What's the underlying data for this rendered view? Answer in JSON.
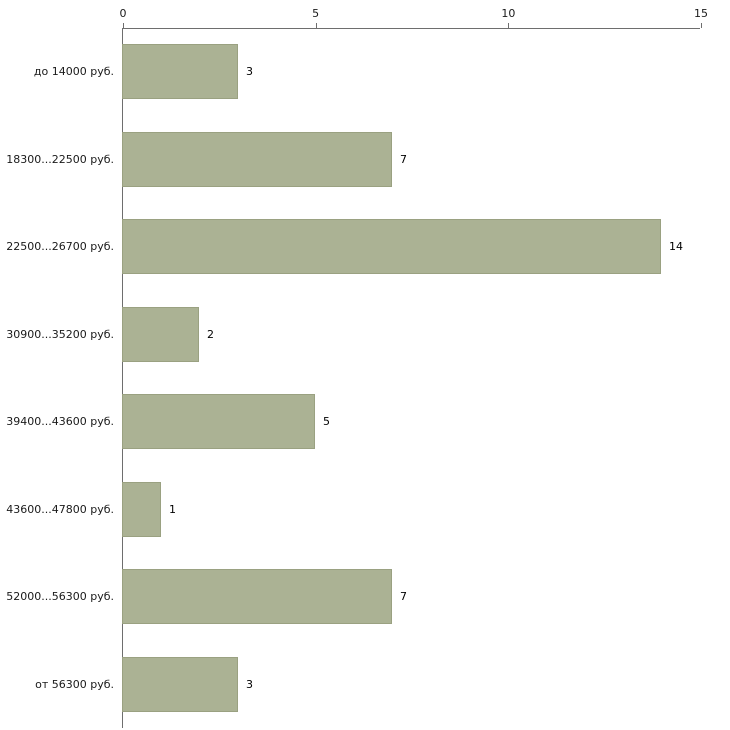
{
  "chart_data": {
    "type": "bar",
    "orientation": "horizontal",
    "title": "",
    "xlabel": "",
    "ylabel": "",
    "categories": [
      "до 14000 руб.",
      "18300...22500 руб.",
      "22500...26700 руб.",
      "30900...35200 руб.",
      "39400...43600 руб.",
      "43600...47800 руб.",
      "52000...56300 руб.",
      "от 56300 руб."
    ],
    "values": [
      3,
      7,
      14,
      2,
      5,
      1,
      7,
      3
    ],
    "xlim": [
      0,
      15
    ],
    "xticks": [
      "0",
      "5",
      "10",
      "15"
    ],
    "xtick_values": [
      0,
      5,
      10,
      15
    ],
    "grid": false,
    "legend": "none",
    "axis_position": "top-left",
    "colors": {
      "bar_fill": "#abb294",
      "bar_border": "#9aa181",
      "axis_line": "#6e6e6e",
      "text": "#1a1a1a",
      "background": "#ffffff"
    }
  }
}
